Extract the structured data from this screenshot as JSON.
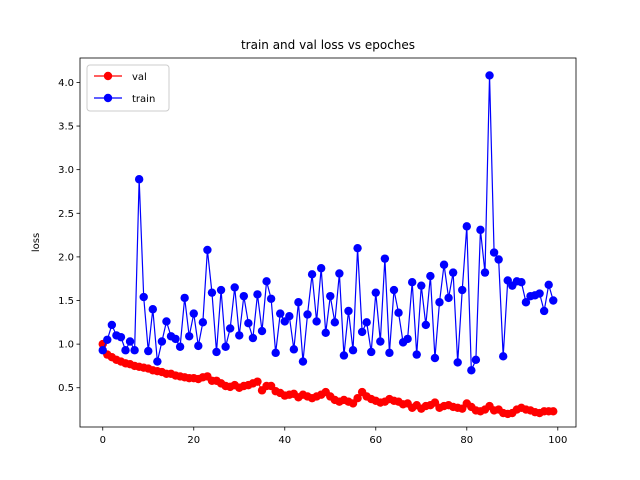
{
  "chart_data": {
    "type": "line",
    "title": "train and val loss vs epoches",
    "xlabel": "",
    "ylabel": "loss",
    "xlim": [
      -5,
      104
    ],
    "ylim": [
      0.05,
      4.28
    ],
    "xticks": [
      0,
      20,
      40,
      60,
      80,
      100
    ],
    "yticks": [
      0.5,
      1.0,
      1.5,
      2.0,
      2.5,
      3.0,
      3.5,
      4.0
    ],
    "grid": false,
    "legend_position": "top-left",
    "series": [
      {
        "name": "val",
        "color": "#ff0000",
        "marker": "circle",
        "x": [
          0,
          1,
          2,
          3,
          4,
          5,
          6,
          7,
          8,
          9,
          10,
          11,
          12,
          13,
          14,
          15,
          16,
          17,
          18,
          19,
          20,
          21,
          22,
          23,
          24,
          25,
          26,
          27,
          28,
          29,
          30,
          31,
          32,
          33,
          34,
          35,
          36,
          37,
          38,
          39,
          40,
          41,
          42,
          43,
          44,
          45,
          46,
          47,
          48,
          49,
          50,
          51,
          52,
          53,
          54,
          55,
          56,
          57,
          58,
          59,
          60,
          61,
          62,
          63,
          64,
          65,
          66,
          67,
          68,
          69,
          70,
          71,
          72,
          73,
          74,
          75,
          76,
          77,
          78,
          79,
          80,
          81,
          82,
          83,
          84,
          85,
          86,
          87,
          88,
          89,
          90,
          91,
          92,
          93,
          94,
          95,
          96,
          97,
          98,
          99
        ],
        "values": [
          1.0,
          0.88,
          0.85,
          0.82,
          0.8,
          0.78,
          0.77,
          0.75,
          0.74,
          0.73,
          0.72,
          0.7,
          0.69,
          0.68,
          0.66,
          0.66,
          0.64,
          0.63,
          0.62,
          0.61,
          0.61,
          0.6,
          0.62,
          0.63,
          0.58,
          0.58,
          0.55,
          0.52,
          0.51,
          0.53,
          0.5,
          0.52,
          0.53,
          0.55,
          0.57,
          0.47,
          0.52,
          0.52,
          0.46,
          0.44,
          0.41,
          0.42,
          0.43,
          0.39,
          0.42,
          0.4,
          0.38,
          0.4,
          0.42,
          0.45,
          0.4,
          0.36,
          0.34,
          0.36,
          0.34,
          0.32,
          0.38,
          0.45,
          0.4,
          0.37,
          0.35,
          0.33,
          0.34,
          0.37,
          0.35,
          0.34,
          0.31,
          0.32,
          0.27,
          0.3,
          0.26,
          0.29,
          0.3,
          0.33,
          0.27,
          0.29,
          0.3,
          0.28,
          0.27,
          0.26,
          0.32,
          0.28,
          0.24,
          0.23,
          0.25,
          0.29,
          0.24,
          0.25,
          0.21,
          0.2,
          0.21,
          0.25,
          0.27,
          0.25,
          0.24,
          0.22,
          0.21,
          0.23,
          0.23,
          0.23
        ]
      },
      {
        "name": "train",
        "color": "#0000ff",
        "marker": "circle",
        "x": [
          0,
          1,
          2,
          3,
          4,
          5,
          6,
          7,
          8,
          9,
          10,
          11,
          12,
          13,
          14,
          15,
          16,
          17,
          18,
          19,
          20,
          21,
          22,
          23,
          24,
          25,
          26,
          27,
          28,
          29,
          30,
          31,
          32,
          33,
          34,
          35,
          36,
          37,
          38,
          39,
          40,
          41,
          42,
          43,
          44,
          45,
          46,
          47,
          48,
          49,
          50,
          51,
          52,
          53,
          54,
          55,
          56,
          57,
          58,
          59,
          60,
          61,
          62,
          63,
          64,
          65,
          66,
          67,
          68,
          69,
          70,
          71,
          72,
          73,
          74,
          75,
          76,
          77,
          78,
          79,
          80,
          81,
          82,
          83,
          84,
          85,
          86,
          87,
          88,
          89,
          90,
          91,
          92,
          93,
          94,
          95,
          96,
          97,
          98,
          99
        ],
        "values": [
          0.93,
          1.05,
          1.22,
          1.1,
          1.08,
          0.93,
          1.03,
          0.93,
          2.89,
          1.54,
          0.92,
          1.4,
          0.8,
          1.03,
          1.26,
          1.09,
          1.06,
          0.97,
          1.53,
          1.09,
          1.35,
          0.98,
          1.25,
          2.08,
          1.59,
          0.91,
          1.62,
          0.97,
          1.18,
          1.65,
          1.1,
          1.55,
          1.24,
          1.07,
          1.57,
          1.15,
          1.72,
          1.52,
          0.9,
          1.35,
          1.26,
          1.32,
          0.94,
          1.48,
          0.8,
          1.34,
          1.8,
          1.26,
          1.87,
          1.13,
          1.55,
          1.25,
          1.81,
          0.87,
          1.38,
          0.93,
          2.1,
          1.14,
          1.25,
          0.91,
          1.59,
          1.03,
          1.98,
          0.9,
          1.62,
          1.36,
          1.02,
          1.06,
          1.71,
          0.88,
          1.67,
          1.22,
          1.78,
          0.84,
          1.48,
          1.91,
          1.53,
          1.82,
          0.79,
          1.62,
          2.35,
          0.7,
          0.82,
          2.31,
          1.82,
          4.08,
          2.05,
          1.97,
          0.86,
          1.73,
          1.67,
          1.72,
          1.71,
          1.48,
          1.55,
          1.56,
          1.58,
          1.38,
          1.68,
          1.5
        ]
      }
    ]
  }
}
